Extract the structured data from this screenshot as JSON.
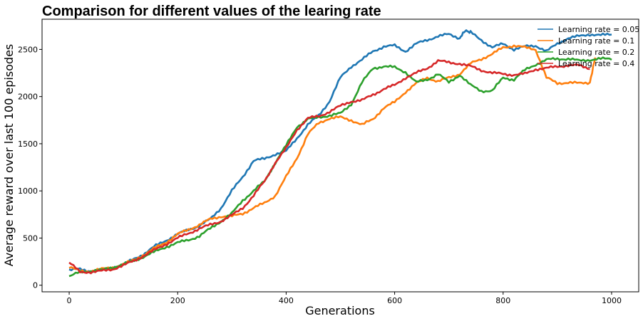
{
  "chart_data": {
    "type": "line",
    "title": "Comparison for different values of the learing rate",
    "xlabel": "Generations",
    "ylabel": "Average reward over last 100 episodes",
    "xlim": [
      -50,
      1050
    ],
    "ylim": [
      -70,
      2820
    ],
    "x_ticks": [
      0,
      200,
      400,
      600,
      800,
      1000
    ],
    "y_ticks": [
      0,
      500,
      1000,
      1500,
      2000,
      2500
    ],
    "grid": false,
    "legend_position": "top-right",
    "series": [
      {
        "name": "Learning rate = 0.05",
        "color": "#1f77b4",
        "x": [
          0,
          20,
          40,
          60,
          80,
          100,
          120,
          140,
          160,
          180,
          200,
          220,
          240,
          260,
          280,
          300,
          320,
          340,
          360,
          380,
          400,
          420,
          440,
          460,
          480,
          500,
          520,
          540,
          560,
          580,
          600,
          620,
          640,
          660,
          680,
          700,
          720,
          730,
          740,
          760,
          780,
          800,
          820,
          840,
          860,
          880,
          900,
          920,
          940,
          960,
          980,
          1000
        ],
        "y": [
          160,
          170,
          150,
          160,
          190,
          220,
          280,
          340,
          420,
          480,
          540,
          590,
          630,
          700,
          820,
          1000,
          1150,
          1320,
          1340,
          1390,
          1420,
          1560,
          1700,
          1800,
          1950,
          2200,
          2320,
          2390,
          2480,
          2530,
          2540,
          2480,
          2560,
          2600,
          2640,
          2660,
          2620,
          2700,
          2680,
          2600,
          2520,
          2560,
          2500,
          2530,
          2540,
          2480,
          2560,
          2620,
          2640,
          2660,
          2650,
          2660
        ]
      },
      {
        "name": "Learning rate = 0.1",
        "color": "#ff7f0e",
        "x": [
          0,
          20,
          40,
          60,
          80,
          100,
          120,
          140,
          160,
          180,
          200,
          220,
          240,
          260,
          280,
          300,
          320,
          340,
          360,
          380,
          400,
          420,
          440,
          460,
          480,
          500,
          520,
          540,
          560,
          580,
          600,
          620,
          640,
          660,
          680,
          700,
          720,
          740,
          760,
          780,
          800,
          820,
          840,
          860,
          880,
          900,
          920,
          940,
          960,
          970
        ],
        "y": [
          190,
          150,
          150,
          170,
          190,
          220,
          270,
          330,
          400,
          460,
          540,
          590,
          640,
          700,
          730,
          730,
          760,
          820,
          870,
          950,
          1150,
          1350,
          1600,
          1720,
          1770,
          1780,
          1750,
          1700,
          1760,
          1880,
          1940,
          2050,
          2140,
          2200,
          2160,
          2200,
          2240,
          2350,
          2400,
          2450,
          2520,
          2540,
          2520,
          2500,
          2200,
          2140,
          2150,
          2140,
          2150,
          2420
        ]
      },
      {
        "name": "Learning rate = 0.2",
        "color": "#2ca02c",
        "x": [
          0,
          20,
          40,
          60,
          80,
          100,
          120,
          140,
          160,
          180,
          200,
          220,
          240,
          260,
          280,
          300,
          320,
          340,
          360,
          380,
          400,
          420,
          440,
          460,
          480,
          500,
          520,
          540,
          560,
          580,
          600,
          620,
          640,
          660,
          680,
          700,
          720,
          740,
          760,
          780,
          800,
          820,
          840,
          860,
          880,
          900,
          920,
          940,
          960,
          980,
          1000
        ],
        "y": [
          90,
          140,
          150,
          160,
          190,
          220,
          260,
          310,
          360,
          410,
          450,
          480,
          520,
          600,
          680,
          760,
          900,
          1000,
          1100,
          1300,
          1480,
          1680,
          1760,
          1780,
          1800,
          1820,
          1920,
          2150,
          2300,
          2320,
          2310,
          2260,
          2150,
          2180,
          2240,
          2150,
          2230,
          2120,
          2060,
          2060,
          2200,
          2180,
          2280,
          2340,
          2390,
          2400,
          2400,
          2380,
          2390,
          2400,
          2400
        ]
      },
      {
        "name": "Learning rate = 0.4",
        "color": "#d62728",
        "x": [
          0,
          20,
          40,
          60,
          80,
          100,
          120,
          140,
          160,
          180,
          200,
          220,
          240,
          260,
          280,
          300,
          320,
          340,
          360,
          380,
          400,
          420,
          440,
          460,
          480,
          500,
          520,
          540,
          560,
          580,
          600,
          620,
          640,
          660,
          680,
          700,
          720,
          740,
          760,
          780,
          800,
          820,
          840,
          860,
          880,
          900,
          920,
          940,
          960
        ],
        "y": [
          240,
          140,
          140,
          150,
          170,
          210,
          260,
          320,
          380,
          440,
          500,
          550,
          600,
          640,
          680,
          740,
          820,
          950,
          1100,
          1300,
          1450,
          1650,
          1770,
          1790,
          1840,
          1900,
          1950,
          1960,
          2020,
          2080,
          2120,
          2200,
          2250,
          2300,
          2380,
          2360,
          2350,
          2320,
          2280,
          2250,
          2240,
          2230,
          2240,
          2290,
          2300,
          2320,
          2330,
          2330,
          2300
        ]
      }
    ]
  }
}
